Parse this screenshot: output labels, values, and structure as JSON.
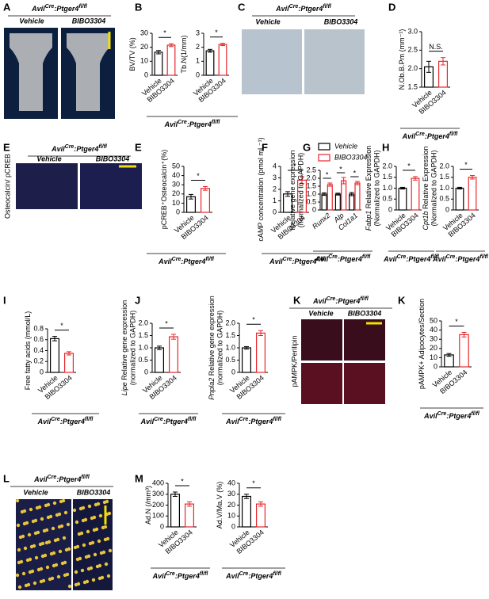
{
  "genotype": {
    "gene1": "Avil",
    "sup1": "Cre",
    "gene2": ":Ptger4",
    "sup2": "fl/fl"
  },
  "images": [
    {
      "panel": "A",
      "labels": [
        "Vehicle",
        "BIBO3304"
      ]
    },
    {
      "panel": "C",
      "labels": [
        "Vehicle",
        "BIBO3304"
      ]
    },
    {
      "panel": "E",
      "labels": [
        "Vehicle",
        "BIBO3304"
      ],
      "stain": "Osteocalcin/ pCREB"
    },
    {
      "panel": "K",
      "labels": [
        "Vehicle",
        "BIBO3304"
      ],
      "stain": "pAMPK/Perilipin"
    },
    {
      "panel": "L",
      "labels": [
        "Vehicle",
        "BIBO3304"
      ]
    }
  ],
  "chart_data": [
    {
      "type": "bar",
      "panel": "B",
      "ylabel": "BV/TV (%)",
      "categories": [
        "Vehicle",
        "BIBO3304"
      ],
      "values": [
        16.5,
        21.5
      ],
      "errors": [
        1.2,
        1.0
      ],
      "colors": [
        "#000000",
        "#e8262b"
      ],
      "ylim": [
        0,
        30
      ],
      "yticks": [
        0,
        10,
        20,
        30
      ],
      "sig": "*"
    },
    {
      "type": "bar",
      "ylabel": "Tb.N(1/mm)",
      "categories": [
        "Vehicle",
        "BIBO3304"
      ],
      "values": [
        1.75,
        2.2
      ],
      "errors": [
        0.1,
        0.08
      ],
      "colors": [
        "#000000",
        "#e8262b"
      ],
      "ylim": [
        0,
        3
      ],
      "yticks": [
        0,
        1,
        2,
        3
      ],
      "sig": "*"
    },
    {
      "type": "bar",
      "panel": "D",
      "ylabel": "N.Ob.B.Pm (mm⁻¹)",
      "categories": [
        "Vehicle",
        "BIBO3304"
      ],
      "values": [
        2.05,
        2.2
      ],
      "errors": [
        0.15,
        0.1
      ],
      "colors": [
        "#000000",
        "#e8262b"
      ],
      "ylim": [
        1.5,
        3.0
      ],
      "yticks": [
        {
          "value": 1.5,
          "label": "1.5"
        },
        {
          "value": 2,
          "label": "2.0"
        },
        {
          "value": 2.5,
          "label": "2.5"
        },
        {
          "value": 3,
          "label": "3.0"
        }
      ],
      "sig": "N.S."
    },
    {
      "type": "bar",
      "panel": "E",
      "ylabel": "pCREB⁺Osteocalcin⁺(%)",
      "categories": [
        "Vehicle",
        "BIBO3304"
      ],
      "values": [
        17,
        26
      ],
      "errors": [
        2.5,
        2
      ],
      "colors": [
        "#000000",
        "#e8262b"
      ],
      "ylim": [
        0,
        50
      ],
      "yticks": [
        0,
        10,
        20,
        30,
        40,
        50
      ],
      "sig": "*"
    },
    {
      "type": "bar",
      "panel": "F",
      "ylabel": "cAMP concentration (pmol mL⁻¹)",
      "categories": [
        "Vehicle",
        "BIBO3304"
      ],
      "values": [
        1.6,
        2.8
      ],
      "errors": [
        0.2,
        0.3
      ],
      "colors": [
        "#000000",
        "#e8262b"
      ],
      "ylim": [
        0,
        4
      ],
      "yticks": [
        0,
        1,
        2,
        3,
        4
      ],
      "sig": "*"
    },
    {
      "type": "bar",
      "panel": "G",
      "ylabel": "Relative gene expression",
      "ylabel2": "(normalized to GAPDH)",
      "categories": [
        "Runx2",
        "Alp",
        "Col1a1"
      ],
      "series": [
        {
          "name": "Vehicle",
          "color": "#000000",
          "values": [
            1,
            1,
            1
          ],
          "errors": [
            0.08,
            0.06,
            0.1
          ]
        },
        {
          "name": "BIBO3304",
          "color": "#e8262b",
          "values": [
            1.6,
            1.85,
            1.7
          ],
          "errors": [
            0.1,
            0.2,
            0.1
          ]
        }
      ],
      "ylim": [
        0,
        2.5
      ],
      "yticks": [
        0,
        0.5,
        {
          "value": 1,
          "label": "1.0"
        },
        1.5,
        {
          "value": 2,
          "label": "2.0"
        },
        2.5
      ],
      "sig": [
        "*",
        "*",
        "*"
      ]
    },
    {
      "type": "bar",
      "panel": "H",
      "ylabel_italic": "Fabp1",
      "ylabel": " Relative Expression",
      "ylabel2": "(Normalized to GAPDH)",
      "categories": [
        "Vehicle",
        "BIBO3304"
      ],
      "values": [
        1.0,
        1.45
      ],
      "errors": [
        0.04,
        0.08
      ],
      "colors": [
        "#000000",
        "#e8262b"
      ],
      "ylim": [
        0,
        2
      ],
      "yticks": [
        0,
        0.5,
        {
          "value": 1,
          "label": "1.0"
        },
        1.5,
        {
          "value": 2,
          "label": "2.0"
        }
      ],
      "sig": "*"
    },
    {
      "type": "bar",
      "ylabel_italic": "Cpt1b",
      "ylabel": " Relative Expression",
      "ylabel2": "(Normalized to GAPDH)",
      "categories": [
        "Vehicle",
        "BIBO3304"
      ],
      "values": [
        1.0,
        1.5
      ],
      "errors": [
        0.04,
        0.08
      ],
      "colors": [
        "#000000",
        "#e8262b"
      ],
      "ylim": [
        0,
        2
      ],
      "yticks": [
        0,
        0.5,
        {
          "value": 1,
          "label": "1.0"
        },
        1.5,
        {
          "value": 2,
          "label": "2.0"
        }
      ],
      "sig": "*"
    },
    {
      "type": "bar",
      "panel": "I",
      "ylabel": "Free fatty acids (mmol/L)",
      "categories": [
        "Vehicle",
        "BIBO3304"
      ],
      "values": [
        0.62,
        0.35
      ],
      "errors": [
        0.04,
        0.03
      ],
      "colors": [
        "#000000",
        "#e8262b"
      ],
      "ylim": [
        0,
        0.8
      ],
      "yticks": [
        0,
        0.2,
        0.4,
        0.6,
        0.8
      ],
      "sig": "*"
    },
    {
      "type": "bar",
      "panel": "J",
      "ylabel_italic": "Lipe",
      "ylabel": " Relative gene expression",
      "ylabel2": "(normalized to GAPDH)",
      "categories": [
        "Vehicle",
        "BIBO3304"
      ],
      "values": [
        1.0,
        1.45
      ],
      "errors": [
        0.07,
        0.1
      ],
      "colors": [
        "#000000",
        "#e8262b"
      ],
      "ylim": [
        0,
        2
      ],
      "yticks": [
        0,
        0.5,
        {
          "value": 1,
          "label": "1.0"
        },
        1.5,
        {
          "value": 2,
          "label": "2.0"
        }
      ],
      "sig": "*"
    },
    {
      "type": "bar",
      "ylabel_italic": "Pnpla2",
      "ylabel": " Relative gene expression",
      "ylabel2": "(normalized to GAPDH)",
      "categories": [
        "Vehicle",
        "BIBO3304"
      ],
      "values": [
        1.0,
        1.6
      ],
      "errors": [
        0.05,
        0.1
      ],
      "colors": [
        "#000000",
        "#e8262b"
      ],
      "ylim": [
        0,
        2
      ],
      "yticks": [
        0,
        0.5,
        {
          "value": 1,
          "label": "1.0"
        },
        1.5,
        {
          "value": 2,
          "label": "2.0"
        }
      ],
      "sig": "*"
    },
    {
      "type": "bar",
      "panel": "K",
      "ylabel": "pAMPK+ Adipocytes/Section",
      "categories": [
        "Vehicle",
        "BIBO3304"
      ],
      "values": [
        13,
        35
      ],
      "errors": [
        1.5,
        2.5
      ],
      "colors": [
        "#000000",
        "#e8262b"
      ],
      "ylim": [
        0,
        50
      ],
      "yticks": [
        0,
        10,
        20,
        30,
        40,
        50
      ],
      "sig": "*"
    },
    {
      "type": "bar",
      "panel": "M",
      "ylabel": "Ad.N (/mm³)",
      "categories": [
        "Vehicle",
        "BIBO3304"
      ],
      "values": [
        300,
        210
      ],
      "errors": [
        20,
        20
      ],
      "colors": [
        "#000000",
        "#e8262b"
      ],
      "ylim": [
        0,
        400
      ],
      "yticks": [
        0,
        100,
        200,
        300,
        400
      ],
      "sig": "*"
    },
    {
      "type": "bar",
      "ylabel": "Ad.V/Ma.V (%)",
      "categories": [
        "Vehicle",
        "BIBO3304"
      ],
      "values": [
        28,
        21
      ],
      "errors": [
        2,
        2
      ],
      "colors": [
        "#000000",
        "#e8262b"
      ],
      "ylim": [
        0,
        40
      ],
      "yticks": [
        0,
        10,
        20,
        30,
        40
      ],
      "sig": "*"
    }
  ]
}
